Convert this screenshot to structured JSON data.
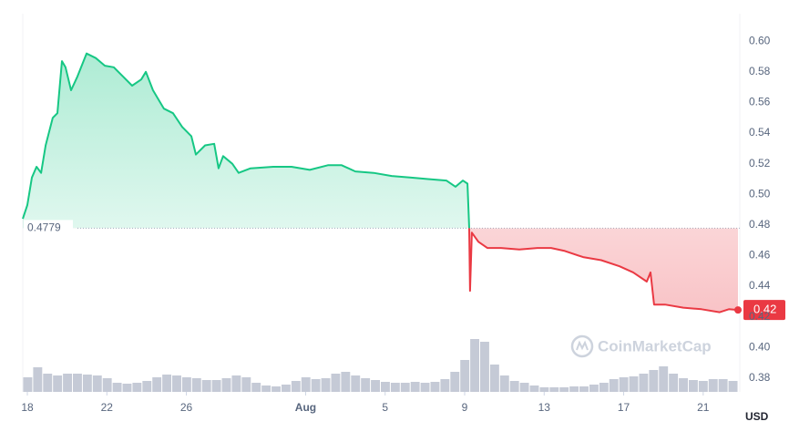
{
  "chart_data": {
    "type": "line",
    "baseline": 0.4779,
    "current_price_label": "0.42",
    "y_axis_label": "USD",
    "watermark": "CoinMarketCap",
    "up_color": "#16c784",
    "down_color": "#ea3943",
    "grid": true,
    "xlim": [
      -0.23,
      35.75
    ],
    "xticks": [
      {
        "value": 0,
        "label": "18"
      },
      {
        "value": 4,
        "label": "22"
      },
      {
        "value": 8,
        "label": "26"
      },
      {
        "value": 14,
        "label": "Aug"
      },
      {
        "value": 18,
        "label": "5"
      },
      {
        "value": 22,
        "label": "9"
      },
      {
        "value": 26,
        "label": "13"
      },
      {
        "value": 30,
        "label": "17"
      },
      {
        "value": 34,
        "label": "21"
      }
    ],
    "ylim": [
      0.371,
      0.618
    ],
    "yticks": [
      {
        "value": 0.38,
        "label": "0.38"
      },
      {
        "value": 0.4,
        "label": "0.40"
      },
      {
        "value": 0.42,
        "label": "0.42"
      },
      {
        "value": 0.44,
        "label": "0.44"
      },
      {
        "value": 0.46,
        "label": "0.46"
      },
      {
        "value": 0.48,
        "label": "0.48"
      },
      {
        "value": 0.5,
        "label": "0.50"
      },
      {
        "value": 0.52,
        "label": "0.52"
      },
      {
        "value": 0.54,
        "label": "0.54"
      },
      {
        "value": 0.56,
        "label": "0.56"
      },
      {
        "value": 0.58,
        "label": "0.58"
      },
      {
        "value": 0.6,
        "label": "0.60"
      }
    ],
    "series": [
      {
        "x": [
          -0.23,
          0,
          0.23,
          0.46,
          0.69,
          0.92,
          1.28,
          1.51,
          1.74,
          1.92,
          2.2,
          2.52,
          2.98,
          3.44,
          3.9,
          4.35,
          4.81,
          5.27,
          5.73,
          5.96,
          6.32,
          6.87,
          7.33,
          7.79,
          8.25,
          8.48,
          8.94,
          9.4,
          9.62,
          9.85,
          10.31,
          10.63,
          11.23,
          12.37,
          13.29,
          14.21,
          15.12,
          15.81,
          16.5,
          17.42,
          18.33,
          19.25,
          20.16,
          21.08,
          21.54,
          21.91,
          22.14,
          22.23,
          22.27,
          22.36,
          22.69,
          23.14,
          23.83,
          24.75,
          25.66,
          26.35,
          27.04,
          27.96,
          28.87,
          29.79,
          30.48,
          31.16,
          31.35,
          31.53,
          32.08,
          33.0,
          33.91,
          34.83,
          35.29,
          35.75
        ],
        "values": [
          0.484,
          0.493,
          0.511,
          0.518,
          0.514,
          0.532,
          0.55,
          0.553,
          0.587,
          0.583,
          0.568,
          0.577,
          0.592,
          0.589,
          0.584,
          0.583,
          0.577,
          0.571,
          0.575,
          0.58,
          0.568,
          0.556,
          0.553,
          0.544,
          0.538,
          0.526,
          0.532,
          0.533,
          0.517,
          0.525,
          0.52,
          0.514,
          0.517,
          0.518,
          0.518,
          0.516,
          0.519,
          0.519,
          0.515,
          0.514,
          0.512,
          0.511,
          0.51,
          0.509,
          0.505,
          0.509,
          0.507,
          0.478,
          0.437,
          0.475,
          0.469,
          0.465,
          0.465,
          0.464,
          0.465,
          0.465,
          0.463,
          0.459,
          0.457,
          0.453,
          0.449,
          0.443,
          0.449,
          0.428,
          0.428,
          0.426,
          0.425,
          0.423,
          0.425,
          0.4245
        ]
      }
    ],
    "volume": {
      "color": "#c5cad6",
      "values": [
        16,
        27,
        20,
        18,
        20,
        20,
        19,
        18,
        15,
        10,
        9,
        10,
        12,
        16,
        19,
        18,
        16,
        15,
        13,
        13,
        15,
        18,
        16,
        10,
        7,
        6,
        8,
        12,
        16,
        14,
        15,
        20,
        22,
        18,
        15,
        13,
        11,
        10,
        10,
        11,
        10,
        11,
        14,
        22,
        35,
        58,
        55,
        30,
        18,
        12,
        10,
        7,
        5,
        5,
        5,
        6,
        6,
        8,
        10,
        14,
        16,
        17,
        20,
        24,
        28,
        20,
        15,
        13,
        12,
        14,
        14,
        12
      ]
    }
  }
}
